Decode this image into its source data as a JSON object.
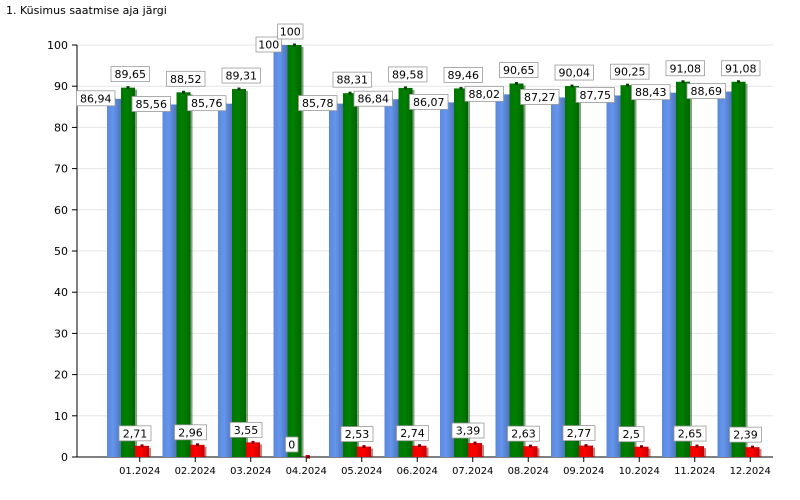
{
  "chart_data": {
    "type": "bar",
    "title": "1. Küsimus saatmise aja järgi",
    "xlabel": "",
    "ylabel": "",
    "ylim": [
      0,
      100
    ],
    "yticks": [
      0,
      10,
      20,
      30,
      40,
      50,
      60,
      70,
      80,
      90,
      100
    ],
    "grid": true,
    "categories": [
      "01.2024",
      "02.2024",
      "03.2024",
      "04.2024",
      "05.2024",
      "06.2024",
      "07.2024",
      "08.2024",
      "09.2024",
      "10.2024",
      "11.2024",
      "12.2024"
    ],
    "series": [
      {
        "color": "#6495ed",
        "values": [
          86.94,
          85.56,
          85.76,
          100,
          85.78,
          86.84,
          86.07,
          88.02,
          87.27,
          87.75,
          88.43,
          88.69
        ],
        "labels": [
          "86,94",
          "85,56",
          "85,76",
          "100",
          "85,78",
          "86,84",
          "86,07",
          "88,02",
          "87,27",
          "87,75",
          "88,43",
          "88,69"
        ]
      },
      {
        "color": "#008000",
        "values": [
          89.65,
          88.52,
          89.31,
          100,
          88.31,
          89.58,
          89.46,
          90.65,
          90.04,
          90.25,
          91.08,
          91.08
        ],
        "labels": [
          "89,65",
          "88,52",
          "89,31",
          "100",
          "88,31",
          "89,58",
          "89,46",
          "90,65",
          "90,04",
          "90,25",
          "91,08",
          "91,08"
        ]
      },
      {
        "color": "#ff0000",
        "values": [
          2.71,
          2.96,
          3.55,
          0,
          2.53,
          2.74,
          3.39,
          2.63,
          2.77,
          2.5,
          2.65,
          2.39
        ],
        "labels": [
          "2,71",
          "2,96",
          "3,55",
          "0",
          "2,53",
          "2,74",
          "3,39",
          "2,63",
          "2,77",
          "2,5",
          "2,65",
          "2,39"
        ]
      }
    ]
  }
}
